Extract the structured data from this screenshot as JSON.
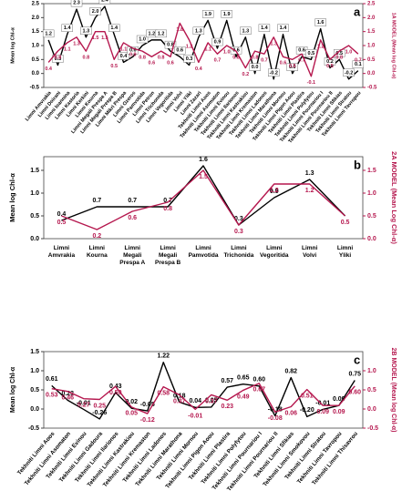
{
  "chart_data": [
    {
      "type": "line",
      "panel": "a",
      "y_label": "Mean log Chl-α",
      "y2_label": "1A MODEL (Mean log Chl-α)",
      "categories": [
        "Limni Amvrakia",
        "Limni Doirani",
        "Limni Ioannina",
        "Limni Kastoria",
        "Limni Kerkini",
        "Limni Kourna",
        "Limni Megali Prespa A",
        "Limni Megali Prespa B",
        "Limni Mikri Prespa",
        "Limni Ozeros",
        "Limni Pamvotida",
        "Limni Petron",
        "Limni Trichonida",
        "Limni Vegoritida",
        "Limni Volvi",
        "Limni Yliki",
        "Limni Zazari",
        "Tekhniti Limni Aoos",
        "Tekhniti Limni Asomaton",
        "Tekhniti Limni Evinou",
        "Tekhniti Limni Ilarionos",
        "Tekhniti Limni Kastrakiou",
        "Tekhniti Limni Kremaston",
        "Tekhniti Limni Ladonos",
        "Tekhniti Limni Marathona",
        "Tekhniti Limni Mornou",
        "Tekhniti Limni Pigon Aoou",
        "Tekhniti Limni Plastira",
        "Tekhniti Limni Polyfytou",
        "Tekhniti Limni Pournariou I",
        "Tekhniti Limni Pournariou II",
        "Tekhniti Limni Sfikias",
        "Tekhniti Limni Stratou",
        "Tekhniti Limni Tavropou"
      ],
      "series": [
        {
          "name": "Mean log Chl-α",
          "color": "#000000",
          "boxed": true,
          "values": [
            1.2,
            0.3,
            1.4,
            2.3,
            1.3,
            2.0,
            2.4,
            1.4,
            0.4,
            0.6,
            1.0,
            1.2,
            1.2,
            0.8,
            0.6,
            0.3,
            1.3,
            1.9,
            0.9,
            1.9,
            0.6,
            1.3,
            0.0,
            1.4,
            -0.2,
            1.4,
            0.0,
            0.6,
            0.5,
            1.6,
            0.2,
            0.5,
            -0.2,
            0.1
          ],
          "value_labels": [
            "1.2",
            "0.3",
            "1.4",
            "2.3",
            "1.3",
            "2.0",
            "2.4",
            "1.4",
            "0.4",
            "0.6",
            "1.0",
            "1.2",
            "1.2",
            "0.8",
            "0.6",
            "0.3",
            "1.3",
            "1.9",
            "0.9",
            "1.9",
            "0.6",
            "1.3",
            "0.0",
            "1.4",
            "-0.2",
            "1.4",
            "0.0",
            "0.6",
            "0.5",
            "1.6",
            "0.2",
            "0.5",
            "-0.2",
            "0.1"
          ]
        },
        {
          "name": "1A MODEL",
          "color": "#b5174e",
          "axis": "y2",
          "values": [
            0.4,
            0.8,
            1.1,
            1.3,
            0.8,
            1.5,
            1.5,
            0.5,
            1.1,
            0.9,
            0.8,
            0.6,
            0.8,
            0.6,
            1.8,
            1.2,
            0.4,
            1.1,
            0.7,
            1.0,
            0.8,
            0.2,
            0.8,
            0.7,
            1.3,
            0.6,
            0.5,
            0.7,
            -0.1,
            1.2,
            0.5,
            0.8,
            1.0,
            0.7
          ],
          "value_labels": [
            "0.4",
            "0.8",
            "1.1",
            "1.3",
            "0.8",
            "1.5",
            "1.5",
            "0.5",
            "1.1",
            "0.9",
            "0.8",
            "0.6",
            "0.8",
            "0.6",
            "1.8",
            "1.2",
            "0.4",
            "1.1",
            "0.7",
            "1.0",
            "0.8",
            "0.2",
            "0.8",
            "0.7",
            "1.3",
            "0.6",
            "0.5",
            "0.7",
            "-0.1",
            "1.2",
            "0.5",
            "0.8",
            "1.0",
            "0.7"
          ]
        }
      ],
      "ylim": [
        -0.5,
        2.5
      ],
      "yticks": [
        -0.5,
        {
          "value": 0,
          "label": "0.0"
        },
        0.5,
        {
          "value": 1,
          "label": "1.0"
        },
        1.5,
        {
          "value": 2,
          "label": "2.0"
        },
        2.5
      ],
      "y2lim": [
        -0.5,
        2.5
      ],
      "y2ticks": [
        -0.5,
        {
          "value": 0,
          "label": "0.0"
        },
        0.5,
        {
          "value": 1,
          "label": "1.0"
        },
        1.5,
        {
          "value": 2,
          "label": "2.0"
        },
        2.5
      ]
    },
    {
      "type": "line",
      "panel": "b",
      "y_label": "Mean log Chl-α",
      "y2_label": "2A MODEL (Mean Log Chl-α)",
      "categories": [
        "Limni Amvrakia",
        "Limni Kourna",
        "Limni Megali Prespa A",
        "Limni Megali Prespa B",
        "Limni Pamvotida",
        "Limni Trichonida",
        "Limni Vegoritida",
        "Limni Volvi",
        "Limni Yliki"
      ],
      "series": [
        {
          "name": "Mean log Chl-α",
          "color": "#000000",
          "values": [
            0.4,
            0.7,
            0.7,
            0.7,
            1.6,
            0.3,
            0.9,
            1.3,
            0.5
          ],
          "value_labels": [
            "0.4",
            "0.7",
            "0.7",
            "0.7",
            "1.6",
            "0.3",
            "0.9",
            "1.3",
            null
          ]
        },
        {
          "name": "2A MODEL",
          "color": "#b5174e",
          "axis": "y2",
          "values": [
            0.5,
            0.2,
            0.6,
            0.8,
            1.5,
            0.3,
            1.2,
            1.2,
            0.5
          ],
          "value_labels": [
            "0.5",
            "0.2",
            "0.6",
            "0.8",
            "1.5",
            "0.3",
            "1.2",
            "1.2",
            "0.5"
          ]
        }
      ],
      "ylim": [
        0,
        1.8
      ],
      "yticks": [
        {
          "value": 0,
          "label": "0.0"
        },
        0.5,
        {
          "value": 1,
          "label": "1.0"
        },
        1.5
      ],
      "y2lim": [
        0,
        1.8
      ],
      "y2ticks": [
        {
          "value": 0,
          "label": "0.0"
        },
        0.5,
        {
          "value": 1,
          "label": "1.0"
        },
        1.5
      ]
    },
    {
      "type": "line",
      "panel": "c",
      "y_label": "Mean log Chl-α",
      "y2_label": "2B MODEL (Mean log Chl-α)",
      "categories": [
        "Tekhniti Limni Aoos",
        "Tekhniti Limni Asomaton",
        "Tekhniti Limni Evinou",
        "Tekhniti Limni Gadoura",
        "Tekhniti Limni Ilarionos",
        "Tekhniti Limni Kastrakiou",
        "Tekhniti Limni Kremaston",
        "Tekhniti Limni Ladonos",
        "Tekhniti Limni Marathona",
        "Tekhniti Limni Mornou",
        "Tekhniti Limni Pigon Aoou",
        "Tekhniti Limni Plastira",
        "Tekhniti Limni Polyfytou",
        "Tekhniti Limni Pournariou I",
        "Tekhniti Limni Pournariou II",
        "Tekhniti Limni Sfikias",
        "Tekhniti Limni Smokovou",
        "Tekhniti Limni Stratou",
        "Tekhniti Limni Tavropou",
        "Tekhniti Limni Thisavrou"
      ],
      "series": [
        {
          "name": "Mean log Chl-α",
          "color": "#000000",
          "values": [
            0.61,
            0.23,
            -0.01,
            -0.26,
            0.43,
            0.02,
            -0.05,
            1.22,
            0.18,
            0.04,
            0.05,
            0.57,
            0.65,
            0.6,
            -0.18,
            0.82,
            -0.2,
            -0.01,
            0.09,
            0.75
          ],
          "value_labels": [
            "0.61",
            "0.23",
            "-0.01",
            "-0.26",
            "0.43",
            "0.02",
            "-0.05",
            "1.22",
            "0.18",
            "0.04",
            "0.05",
            "0.57",
            "0.65",
            "0.60",
            "-0.18",
            "0.82",
            "-0.20",
            "-0.01",
            "0.09",
            "0.75"
          ]
        },
        {
          "name": "2B MODEL",
          "color": "#b5174e",
          "axis": "y2",
          "values": [
            0.53,
            0.46,
            0.27,
            0.25,
            0.59,
            0.05,
            -0.12,
            0.58,
            0.37,
            -0.01,
            0.37,
            0.23,
            0.49,
            0.67,
            -0.08,
            0.06,
            0.51,
            0.09,
            0.09,
            0.6
          ],
          "value_labels": [
            "0.53",
            "0.46",
            "0.27",
            "0.25",
            "0.59",
            "0.05",
            "-0.12",
            "0.58",
            "0.37",
            "-0.01",
            "0.37",
            "0.23",
            "0.49",
            "0.67",
            "-0.08",
            "0.06",
            "0.51",
            "0.09",
            "0.09",
            "0.60"
          ]
        }
      ],
      "ylim": [
        -0.5,
        1.5
      ],
      "yticks": [
        -0.5,
        {
          "value": 0,
          "label": "0.0"
        },
        0.5,
        {
          "value": 1,
          "label": "1.0"
        },
        1.5
      ],
      "y2lim": [
        -0.5,
        1.5
      ],
      "y2ticks": [
        -0.5,
        {
          "value": 0,
          "label": "0.0"
        },
        0.5,
        {
          "value": 1,
          "label": "1.0"
        }
      ]
    }
  ]
}
